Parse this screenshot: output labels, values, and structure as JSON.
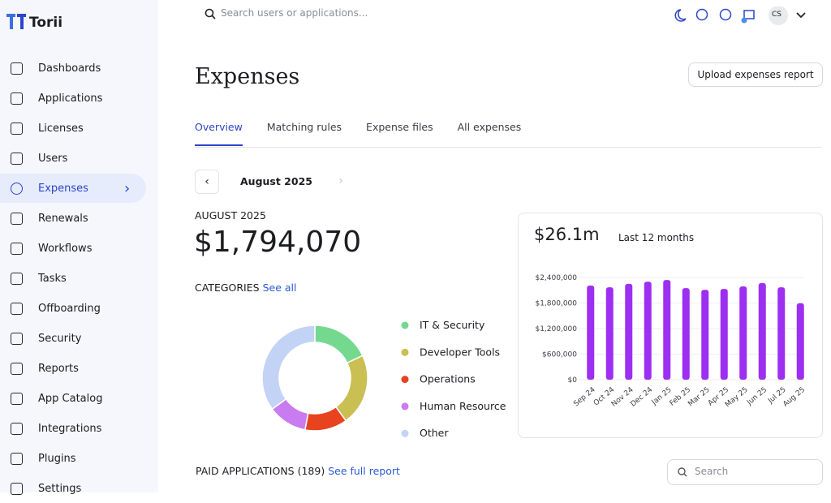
{
  "sidebar": {
    "brand": "Torii",
    "nav": [
      "Dashboards",
      "Applications",
      "Licenses",
      "Users",
      "Expenses",
      "Renewals",
      "Workflows",
      "Tasks",
      "Offboarding",
      "Security",
      "Reports",
      "App Catalog",
      "Integrations",
      "Plugins",
      "Settings"
    ],
    "active": 4
  },
  "topbar": {
    "search_placeholder": "Search users or applications...",
    "avatar": "CS"
  },
  "page": {
    "title": "Expenses",
    "upload_button": "Upload expenses report",
    "tabs": [
      "Overview",
      "Matching rules",
      "Expense files",
      "All expenses"
    ],
    "active_tab": 0,
    "month": "August 2025"
  },
  "summary": {
    "period": "AUGUST 2025",
    "total": "$1,794,070",
    "categories_label": "CATEGORIES",
    "see_all": "See all"
  },
  "donut": {
    "type": "pie",
    "categories": [
      "IT & Security",
      "Developer Tools",
      "Operations",
      "Human Resource",
      "Other"
    ],
    "colors": [
      "#74d98f",
      "#c9bf52",
      "#e8431f",
      "#c97bf0",
      "#c3d3f5"
    ],
    "values": [
      18,
      22,
      13,
      12,
      35
    ]
  },
  "bar_chart": {
    "type": "bar",
    "total": "$26.1m",
    "period": "Last 12 months",
    "categories": [
      "Sep 24",
      "Oct 24",
      "Nov 24",
      "Dec 24",
      "Jan 25",
      "Feb 25",
      "Mar 25",
      "Apr 25",
      "May 25",
      "Jun 25",
      "Jul 25",
      "Aug 25"
    ],
    "values": [
      2210000,
      2170000,
      2250000,
      2300000,
      2340000,
      2150000,
      2110000,
      2130000,
      2190000,
      2270000,
      2170000,
      1794070
    ],
    "color": "#9d2ff0",
    "ylim": [
      0,
      2400000
    ],
    "yticks": [
      {
        "value": 0,
        "label": "$0"
      },
      {
        "value": 600000,
        "label": "$600,000"
      },
      {
        "value": 1200000,
        "label": "$1,200,000"
      },
      {
        "value": 1800000,
        "label": "$1,800,000"
      },
      {
        "value": 2400000,
        "label": "$2,400,000"
      }
    ],
    "grid": true
  },
  "applications": {
    "title": "PAID APPLICATIONS (189)",
    "link": "See full report",
    "search_placeholder": "Search"
  }
}
